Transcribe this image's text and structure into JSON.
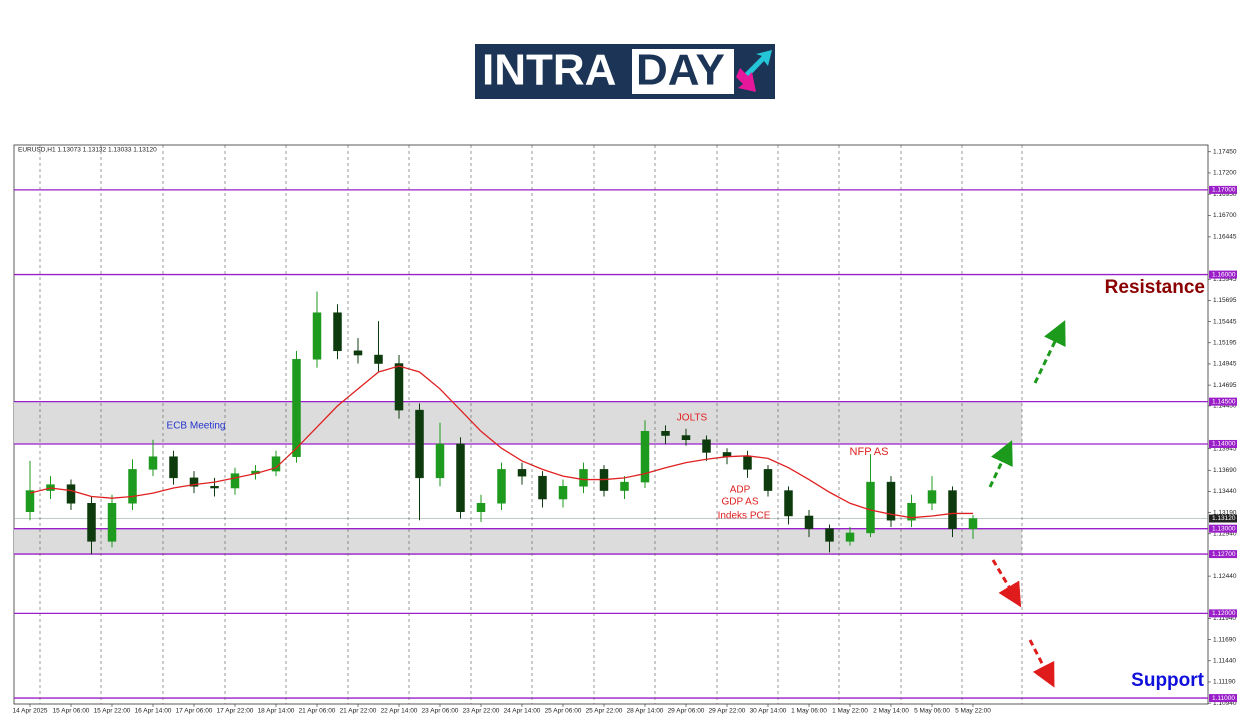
{
  "logo": {
    "left": "INTRA",
    "right": "DAY"
  },
  "chart_data": {
    "type": "candlestick",
    "symbol_info": "EURUSD,H1  1.13073 1.13132 1.13033 1.13120",
    "categories": [
      "14 Apr 2025",
      null,
      "15 Apr 06:00",
      null,
      "15 Apr 22:00",
      null,
      "16 Apr 14:00",
      null,
      "17 Apr 06:00",
      null,
      "17 Apr 22:00",
      null,
      "18 Apr 14:00",
      null,
      "21 Apr 06:00",
      null,
      "21 Apr 22:00",
      null,
      "22 Apr 14:00",
      null,
      "23 Apr 06:00",
      null,
      "23 Apr 22:00",
      null,
      "24 Apr 14:00",
      null,
      "25 Apr 06:00",
      null,
      "25 Apr 22:00",
      null,
      "28 Apr 14:00",
      null,
      "29 Apr 06:00",
      null,
      "29 Apr 22:00",
      null,
      "30 Apr 14:00",
      null,
      "1 May 06:00",
      null,
      "1 May 22:00",
      null,
      "2 May 14:00",
      null,
      "5 May 06:00",
      null,
      "5 May 22:00"
    ],
    "open": [
      1.132,
      1.1345,
      1.1352,
      1.133,
      1.1285,
      1.133,
      1.137,
      1.1385,
      1.136,
      1.135,
      1.1348,
      1.1365,
      1.1368,
      1.1385,
      1.15,
      1.1555,
      1.151,
      1.1505,
      1.1495,
      1.144,
      1.136,
      1.14,
      1.132,
      1.133,
      1.137,
      1.1362,
      1.1335,
      1.135,
      1.137,
      1.1345,
      1.1355,
      1.1415,
      1.141,
      1.1405,
      1.139,
      1.1385,
      1.137,
      1.1345,
      1.1315,
      1.13,
      1.1285,
      1.1295,
      1.1355,
      1.131,
      1.133,
      1.1345,
      1.13
    ],
    "high": [
      1.138,
      1.1362,
      1.1358,
      1.1338,
      1.134,
      1.1382,
      1.1405,
      1.1392,
      1.1368,
      1.136,
      1.1372,
      1.1375,
      1.1392,
      1.151,
      1.158,
      1.1565,
      1.1525,
      1.1545,
      1.1505,
      1.1448,
      1.1425,
      1.1408,
      1.134,
      1.1378,
      1.1378,
      1.1368,
      1.1358,
      1.1378,
      1.1375,
      1.1362,
      1.1428,
      1.1422,
      1.1418,
      1.141,
      1.1395,
      1.1392,
      1.1375,
      1.135,
      1.1322,
      1.1305,
      1.1302,
      1.1388,
      1.1362,
      1.134,
      1.1362,
      1.135,
      1.1316
    ],
    "low": [
      1.131,
      1.1335,
      1.1322,
      1.127,
      1.1278,
      1.1322,
      1.1362,
      1.1352,
      1.1342,
      1.1338,
      1.134,
      1.1358,
      1.1362,
      1.1378,
      1.149,
      1.15,
      1.1495,
      1.1485,
      1.143,
      1.131,
      1.135,
      1.1312,
      1.1308,
      1.1322,
      1.1352,
      1.1325,
      1.1325,
      1.1342,
      1.1338,
      1.1335,
      1.1348,
      1.14,
      1.1398,
      1.138,
      1.1376,
      1.136,
      1.1338,
      1.1305,
      1.129,
      1.1272,
      1.128,
      1.129,
      1.1302,
      1.1302,
      1.1322,
      1.129,
      1.1288
    ],
    "close": [
      1.1345,
      1.1352,
      1.133,
      1.1285,
      1.133,
      1.137,
      1.1385,
      1.136,
      1.135,
      1.1348,
      1.1365,
      1.1368,
      1.1385,
      1.15,
      1.1555,
      1.151,
      1.1505,
      1.1495,
      1.144,
      1.136,
      1.14,
      1.132,
      1.133,
      1.137,
      1.1362,
      1.1335,
      1.135,
      1.137,
      1.1345,
      1.1355,
      1.1415,
      1.141,
      1.1405,
      1.139,
      1.1385,
      1.137,
      1.1345,
      1.1315,
      1.13,
      1.1285,
      1.1295,
      1.1355,
      1.131,
      1.133,
      1.1345,
      1.13,
      1.1312
    ],
    "up_color": "#1e9a1e",
    "down_color": "#0d3b0d",
    "ma_values": [
      1.1342,
      1.1348,
      1.1345,
      1.1338,
      1.1336,
      1.1338,
      1.1342,
      1.1348,
      1.1352,
      1.1355,
      1.136,
      1.1365,
      1.1372,
      1.1395,
      1.142,
      1.1445,
      1.1465,
      1.1485,
      1.1492,
      1.1485,
      1.1465,
      1.144,
      1.1415,
      1.1395,
      1.138,
      1.137,
      1.1362,
      1.1358,
      1.1358,
      1.136,
      1.1365,
      1.1372,
      1.1378,
      1.1382,
      1.1385,
      1.1386,
      1.1383,
      1.1372,
      1.1358,
      1.1343,
      1.133,
      1.1322,
      1.1317,
      1.1313,
      1.1315,
      1.1318,
      1.1318
    ],
    "ma_color": "#e02020",
    "ylim": [
      1.1093,
      1.1753
    ],
    "yticks": [
      {
        "value": 1.1745,
        "label": "1.17450"
      },
      {
        "value": 1.172,
        "label": "1.17200"
      },
      {
        "value": 1.1695,
        "label": "1.16950"
      },
      {
        "value": 1.167,
        "label": "1.16700"
      },
      1.16445,
      1.15945,
      1.15695,
      1.15445,
      1.15195,
      1.14945,
      1.14695,
      {
        "value": 1.1445,
        "label": "1.14450"
      },
      1.13945,
      {
        "value": 1.1369,
        "label": "1.13690"
      },
      {
        "value": 1.1344,
        "label": "1.13440"
      },
      {
        "value": 1.1319,
        "label": "1.13190"
      },
      {
        "value": 1.1294,
        "label": "1.12940"
      },
      {
        "value": 1.1244,
        "label": "1.12440"
      },
      {
        "value": 1.1194,
        "label": "1.11940"
      },
      {
        "value": 1.1169,
        "label": "1.11690"
      },
      {
        "value": 1.1144,
        "label": "1.11440"
      },
      {
        "value": 1.1119,
        "label": "1.11190"
      },
      {
        "value": 1.1094,
        "label": "1.10940"
      }
    ],
    "levels": [
      {
        "value": 1.17,
        "label": "1.17000"
      },
      {
        "value": 1.16,
        "label": "1.16000"
      },
      {
        "value": 1.145,
        "label": "1.14500"
      },
      {
        "value": 1.14,
        "label": "1.14000"
      },
      {
        "value": 1.13,
        "label": "1.13000"
      },
      {
        "value": 1.127,
        "label": "1.12700"
      },
      {
        "value": 1.12,
        "label": "1.12000"
      },
      {
        "value": 1.11,
        "label": "1.11000"
      }
    ],
    "level_color": "#9a1fc9",
    "zones": [
      {
        "from": 1.14,
        "to": 1.145
      },
      {
        "from": 1.127,
        "to": 1.13
      }
    ],
    "zone_color": "#dcdcdc",
    "current_price": {
      "value": 1.1312,
      "label": "1.13120"
    },
    "annotations": {
      "ecb": "ECB Meeting",
      "jolts": "JOLTS",
      "adp": "ADP",
      "gdp": "GDP AS",
      "pce": "Indeks PCE",
      "nfp": "NFP AS",
      "resistance": "Resistance",
      "support": "Support"
    }
  }
}
